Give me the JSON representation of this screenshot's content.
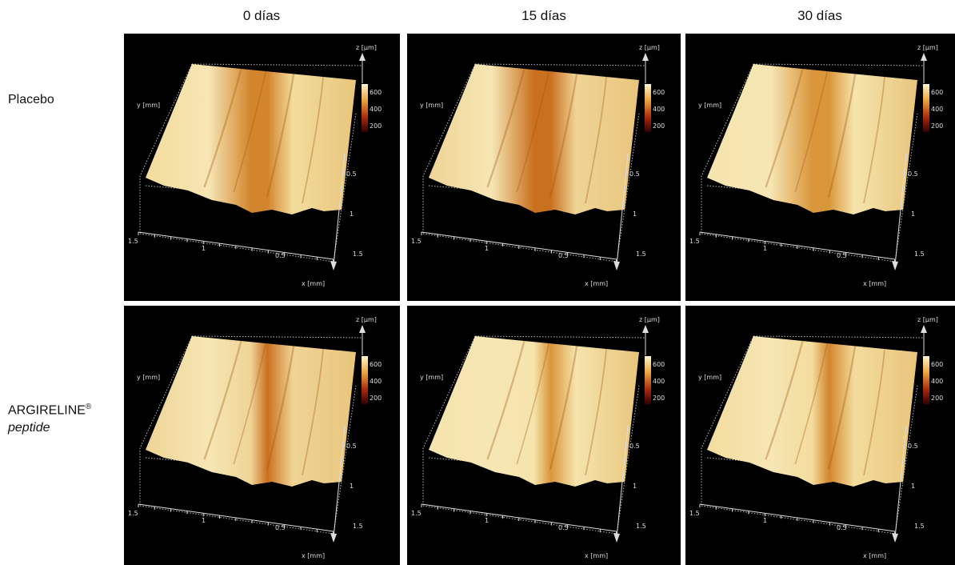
{
  "columns": [
    "0 días",
    "15 días",
    "30 días"
  ],
  "rows": [
    {
      "label": "Placebo"
    },
    {
      "label": "ARGIRELINE",
      "superscript": "®",
      "subtitle": "peptide"
    }
  ],
  "panel": {
    "z_axis_label": "z [µm]",
    "y_axis_label": "y [mm]",
    "x_axis_label": "x [mm]",
    "colorbar_ticks": [
      600,
      400,
      200
    ],
    "y_ticks": [
      0.5,
      1,
      1.5
    ],
    "x_ticks": [
      1.5,
      1,
      0.5
    ]
  }
}
